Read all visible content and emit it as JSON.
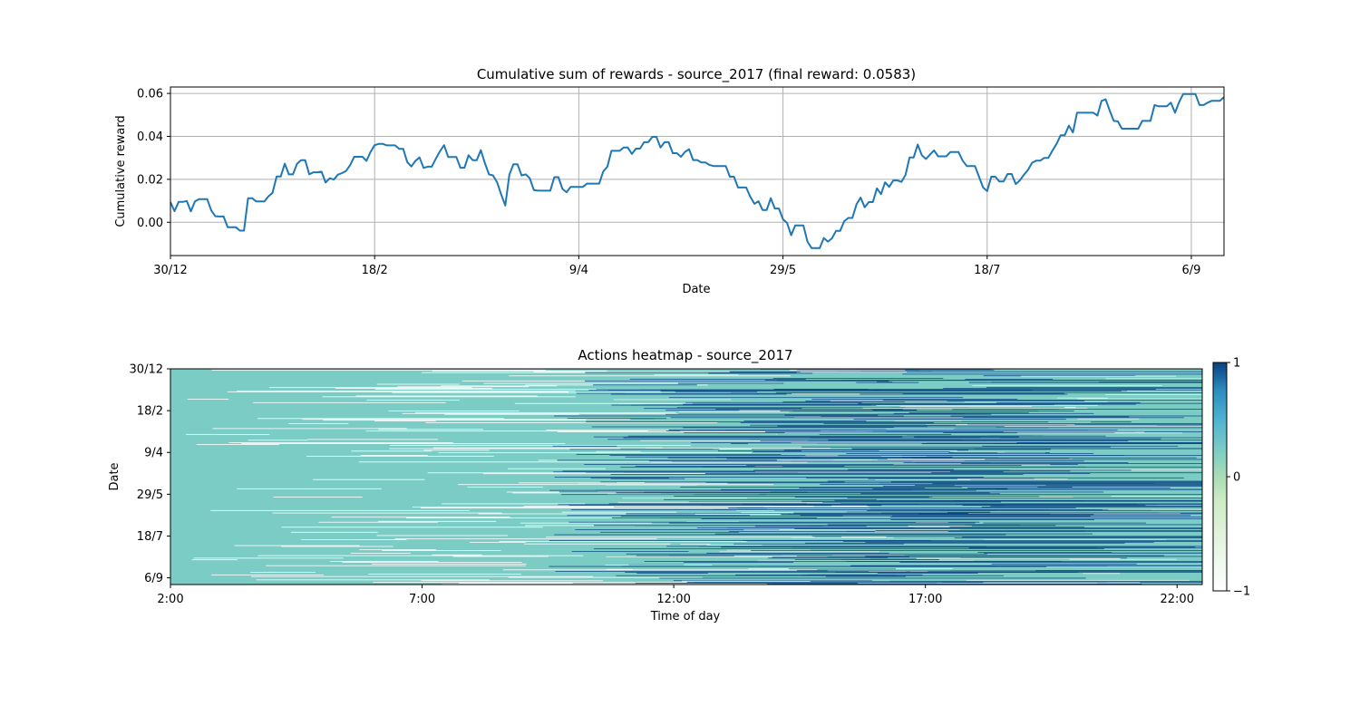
{
  "chart_data": [
    {
      "type": "line",
      "title": "Cumulative sum of rewards - source_2017 (final reward: 0.0583)",
      "xlabel": "Date",
      "ylabel": "Cumulative reward",
      "x_tick_labels": [
        "30/12",
        "18/2",
        "9/4",
        "29/5",
        "18/7",
        "6/9"
      ],
      "x_tick_days": [
        0,
        50,
        100,
        150,
        200,
        250
      ],
      "y_ticks": [
        0.0,
        0.02,
        0.04,
        0.06
      ],
      "y_tick_labels": [
        "0.00",
        "0.02",
        "0.04",
        "0.06"
      ],
      "ylim": [
        -0.0155,
        0.063
      ],
      "xlim_days": [
        0,
        258
      ],
      "grid": true,
      "color": "#1f77b4",
      "series": [
        {
          "x": [
            0,
            1,
            2,
            3,
            4,
            5,
            6,
            7,
            8,
            9,
            10,
            11,
            12,
            13,
            14,
            15,
            16,
            17,
            18,
            19,
            20,
            21,
            22,
            23,
            24,
            25,
            26,
            27,
            28,
            29,
            30,
            31,
            32,
            33,
            34,
            35,
            36,
            37,
            38,
            39,
            40,
            41,
            42,
            43,
            44,
            45,
            46,
            47,
            48,
            49,
            50,
            51,
            52,
            53,
            54,
            55,
            56,
            57,
            58,
            59,
            60,
            61,
            62,
            63,
            64,
            65,
            66,
            67,
            68,
            69,
            70,
            71,
            72,
            73,
            74,
            75,
            76,
            77,
            78,
            79,
            80,
            81,
            82,
            83,
            84,
            85,
            86,
            87,
            88,
            89,
            90,
            91,
            92,
            93,
            94,
            95,
            96,
            97,
            98,
            99,
            100,
            101,
            102,
            103,
            104,
            105,
            106,
            107,
            108,
            109,
            110,
            111,
            112,
            113,
            114,
            115,
            116,
            117,
            118,
            119,
            120,
            121,
            122,
            123,
            124,
            125,
            126,
            127,
            128,
            129,
            130,
            131,
            132,
            133,
            134,
            135,
            136,
            137,
            138,
            139,
            140,
            141,
            142,
            143,
            144,
            145,
            146,
            147,
            148,
            149,
            150,
            151,
            152,
            153,
            154,
            155,
            156,
            157,
            158,
            159,
            160,
            161,
            162,
            163,
            164,
            165,
            166,
            167,
            168,
            169,
            170,
            171,
            172,
            173,
            174,
            175,
            176,
            177,
            178,
            179,
            180,
            181,
            182,
            183,
            184,
            185,
            186,
            187,
            188,
            189,
            190,
            191,
            192,
            193,
            194,
            195,
            196,
            197,
            198,
            199,
            200,
            201,
            202,
            203,
            204,
            205,
            206,
            207,
            208,
            209,
            210,
            211,
            212,
            213,
            214,
            215,
            216,
            217,
            218,
            219,
            220,
            221,
            222,
            223,
            224,
            225,
            226,
            227,
            228,
            229,
            230,
            231,
            232,
            233,
            234,
            235,
            236,
            237,
            238,
            239,
            240,
            241,
            242,
            243,
            244,
            245,
            246,
            247,
            248,
            249,
            250,
            251,
            252,
            253,
            254,
            255,
            256,
            257,
            258
          ],
          "y": [
            0.0093,
            0.0052,
            0.0095,
            0.0095,
            0.0099,
            0.0051,
            0.0097,
            0.0108,
            0.0108,
            0.0108,
            0.0055,
            0.0028,
            0.0027,
            0.0027,
            -0.0023,
            -0.0023,
            -0.0023,
            -0.0039,
            -0.0039,
            0.0112,
            0.0112,
            0.0097,
            0.0097,
            0.0097,
            0.0121,
            0.0137,
            0.0213,
            0.0213,
            0.0273,
            0.0223,
            0.0223,
            0.0272,
            0.0289,
            0.0289,
            0.0223,
            0.0233,
            0.0233,
            0.0236,
            0.0185,
            0.0205,
            0.0199,
            0.0222,
            0.0229,
            0.0239,
            0.0266,
            0.0305,
            0.0305,
            0.0305,
            0.0286,
            0.0328,
            0.0359,
            0.0365,
            0.0365,
            0.0358,
            0.0358,
            0.0358,
            0.0342,
            0.0342,
            0.028,
            0.026,
            0.0286,
            0.0302,
            0.0253,
            0.0259,
            0.0259,
            0.0297,
            0.0331,
            0.0359,
            0.0304,
            0.0304,
            0.0304,
            0.0254,
            0.0254,
            0.0312,
            0.0289,
            0.0289,
            0.0336,
            0.0276,
            0.0223,
            0.0218,
            0.0186,
            0.0129,
            0.0078,
            0.0222,
            0.027,
            0.027,
            0.0218,
            0.0223,
            0.0205,
            0.015,
            0.0147,
            0.0147,
            0.0147,
            0.0147,
            0.021,
            0.021,
            0.0155,
            0.014,
            0.0165,
            0.0165,
            0.0165,
            0.0165,
            0.018,
            0.018,
            0.018,
            0.018,
            0.0237,
            0.0259,
            0.0333,
            0.0333,
            0.0333,
            0.0348,
            0.0348,
            0.0318,
            0.0343,
            0.0343,
            0.0373,
            0.0373,
            0.0398,
            0.0398,
            0.0348,
            0.0373,
            0.0373,
            0.0322,
            0.0322,
            0.0305,
            0.0328,
            0.034,
            0.029,
            0.029,
            0.0279,
            0.0279,
            0.0267,
            0.0262,
            0.0262,
            0.0262,
            0.0262,
            0.0212,
            0.0212,
            0.0162,
            0.0162,
            0.0162,
            0.0118,
            0.0086,
            0.0098,
            0.0057,
            0.0057,
            0.0112,
            0.0064,
            0.0064,
            0.0014,
            -0.0003,
            -0.006,
            -0.0015,
            -0.0015,
            -0.0015,
            -0.009,
            -0.012,
            -0.012,
            -0.012,
            -0.0073,
            -0.009,
            -0.0075,
            -0.004,
            -0.004,
            0.0005,
            0.002,
            0.002,
            0.0084,
            0.0115,
            0.007,
            0.0094,
            0.0094,
            0.0158,
            0.0131,
            0.0186,
            0.0165,
            0.0195,
            0.0195,
            0.0188,
            0.022,
            0.0302,
            0.0302,
            0.0362,
            0.0312,
            0.0295,
            0.0315,
            0.0335,
            0.0307,
            0.0307,
            0.0307,
            0.0327,
            0.0327,
            0.0327,
            0.0287,
            0.0262,
            0.0262,
            0.0262,
            0.0212,
            0.0162,
            0.0145,
            0.0212,
            0.0212,
            0.019,
            0.019,
            0.0225,
            0.0225,
            0.0178,
            0.0195,
            0.0221,
            0.0244,
            0.0277,
            0.0287,
            0.0287,
            0.03,
            0.03,
            0.0334,
            0.0365,
            0.0405,
            0.0405,
            0.045,
            0.0418,
            0.051,
            0.051,
            0.051,
            0.051,
            0.051,
            0.0497,
            0.0565,
            0.0573,
            0.0521,
            0.0472,
            0.047,
            0.0436,
            0.0436,
            0.0436,
            0.0436,
            0.0436,
            0.0472,
            0.0472,
            0.0472,
            0.0546,
            0.054,
            0.054,
            0.054,
            0.0557,
            0.051,
            0.056,
            0.0597,
            0.0597,
            0.0597,
            0.0597,
            0.0546,
            0.0546,
            0.0557,
            0.0566,
            0.0566,
            0.0566,
            0.0583
          ]
        }
      ]
    },
    {
      "type": "heatmap",
      "title": "Actions heatmap - source_2017",
      "xlabel": "Time of day",
      "ylabel": "Date",
      "x_tick_labels": [
        "2:00",
        "7:00",
        "12:00",
        "17:00",
        "22:00"
      ],
      "x_tick_hours": [
        2,
        7,
        12,
        17,
        22
      ],
      "xlim_hours": [
        2,
        22.5
      ],
      "y_tick_labels": [
        "30/12",
        "18/2",
        "9/4",
        "29/5",
        "18/7",
        "6/9"
      ],
      "y_tick_days": [
        0,
        50,
        100,
        150,
        200,
        250
      ],
      "ylim_days": [
        0,
        258
      ],
      "colormap": "GnBu",
      "colormap_stops": [
        "#f7fcf0",
        "#ccebc5",
        "#7bccc4",
        "#2b8cbe",
        "#084081"
      ],
      "vmin": -1,
      "vmax": 1,
      "colorbar_ticks": [
        1,
        0,
        -1
      ],
      "colorbar_tick_labels": [
        "1",
        "0",
        "−1"
      ],
      "values_description_colors": {
        "zero": "#7bccc4",
        "one": "#084081",
        "minus_one": "#ffffff"
      }
    }
  ]
}
